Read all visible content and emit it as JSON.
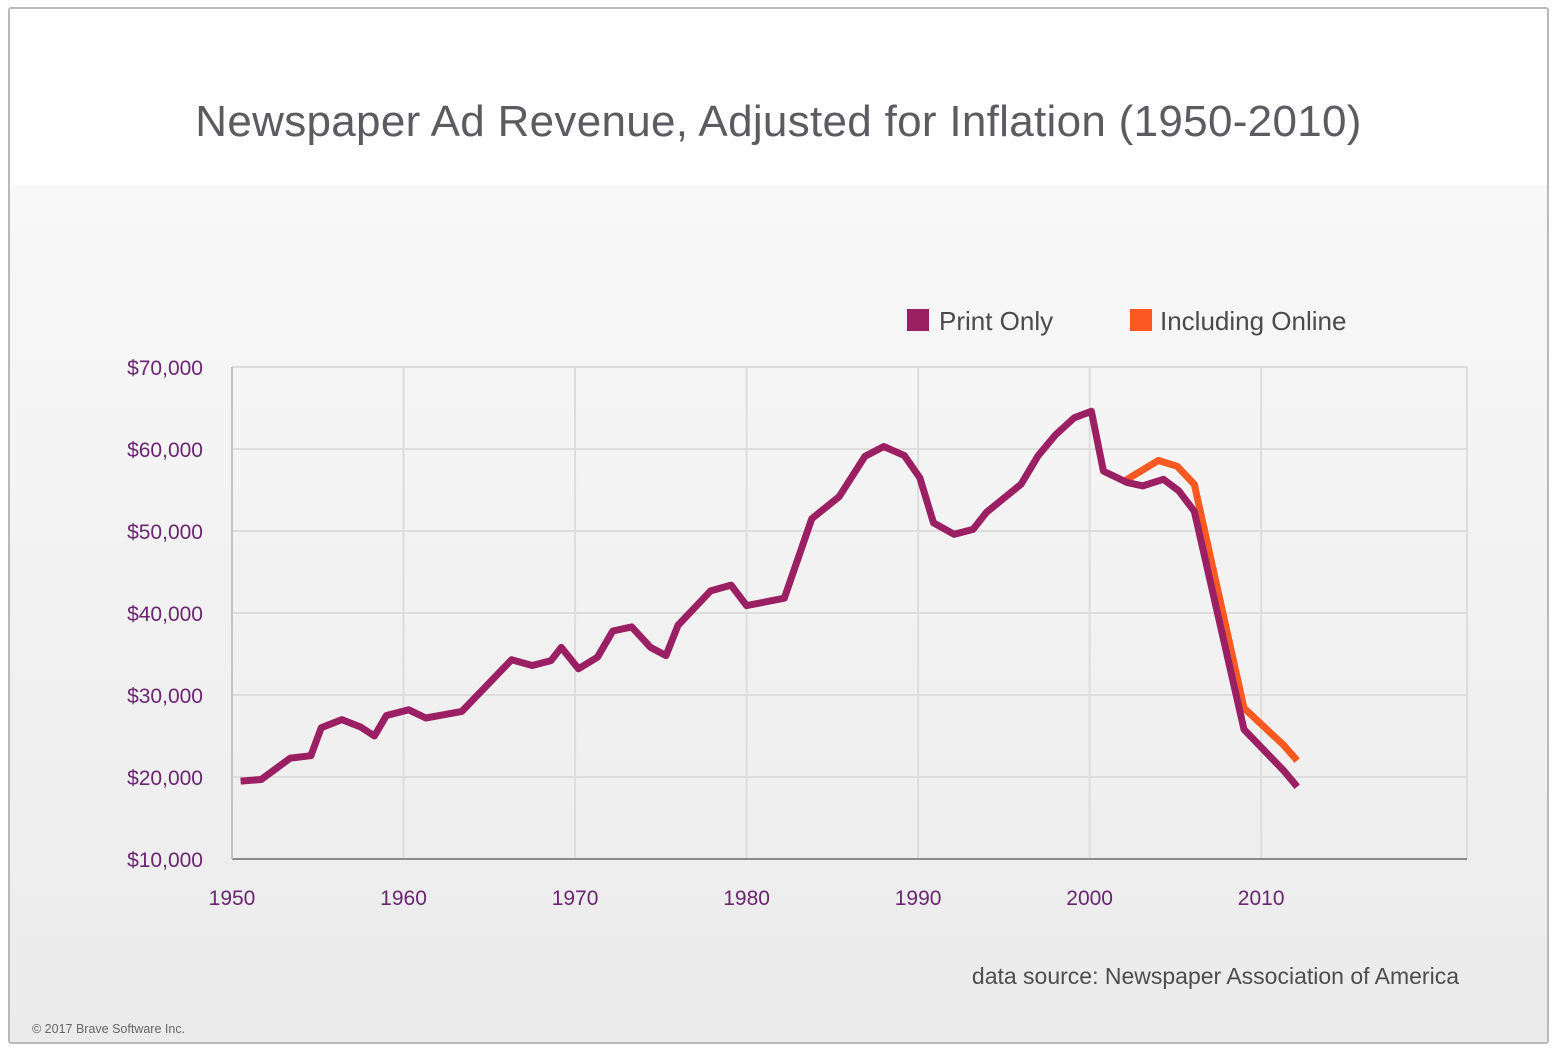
{
  "chart_data": {
    "type": "line",
    "title": "Newspaper Ad Revenue, Adjusted for Inflation (1950-2010)",
    "xlabel": "",
    "ylabel": "",
    "xlim": [
      1950,
      2022
    ],
    "ylim": [
      10000,
      70000
    ],
    "x_ticks": [
      1950,
      1960,
      1970,
      1980,
      1990,
      2000,
      2010
    ],
    "x_tick_labels": [
      "1950",
      "1960",
      "1970",
      "1980",
      "1990",
      "2000",
      "2010"
    ],
    "y_ticks": [
      10000,
      20000,
      30000,
      40000,
      50000,
      60000,
      70000
    ],
    "y_tick_labels": [
      "$10,000",
      "$20,000",
      "$30,000",
      "$40,000",
      "$50,000",
      "$60,000",
      "$70,000"
    ],
    "grid": true,
    "legend_position": "top-right",
    "series": [
      {
        "name": "Print Only",
        "color": "#9b1f63",
        "x": [
          1950.5,
          1951.7,
          1953.4,
          1954.6,
          1955.2,
          1956.4,
          1957.5,
          1958.3,
          1959.0,
          1960.3,
          1961.3,
          1963.4,
          1966.3,
          1967.5,
          1968.6,
          1969.2,
          1970.2,
          1971.3,
          1972.2,
          1973.3,
          1974.4,
          1975.3,
          1976.0,
          1977.9,
          1979.1,
          1980.0,
          1982.2,
          1983.8,
          1985.4,
          1986.9,
          1988.0,
          1989.2,
          1990.1,
          1990.9,
          1992.1,
          1993.2,
          1994.0,
          1996.0,
          1997.0,
          1998.0,
          1999.1,
          2000.1,
          2000.8,
          2002.2,
          2003.1,
          2004.3,
          2005.2,
          2006.1,
          2009.0,
          2011.3,
          2012.1
        ],
        "values": [
          19500,
          19700,
          22300,
          22600,
          26000,
          27000,
          26100,
          25000,
          27500,
          28200,
          27200,
          28000,
          34300,
          33600,
          34200,
          35800,
          33200,
          34600,
          37800,
          38300,
          35800,
          34800,
          38500,
          42700,
          43400,
          40900,
          41800,
          51500,
          54200,
          59100,
          60300,
          59200,
          56500,
          51000,
          49600,
          50200,
          52300,
          55700,
          59200,
          61700,
          63800,
          64600,
          57300,
          55900,
          55500,
          56300,
          54900,
          52400,
          25800,
          20800,
          18800
        ]
      },
      {
        "name": "Including Online",
        "color": "#fa5a22",
        "x": [
          2002.1,
          2004.0,
          2005.1,
          2006.1,
          2009.0,
          2011.3,
          2012.1
        ],
        "values": [
          56200,
          58600,
          57900,
          55700,
          28400,
          23900,
          22000
        ]
      }
    ],
    "annotations": [
      "data source: Newspaper Association of America"
    ]
  },
  "footer": {
    "source_note": "data source: Newspaper Association of America",
    "copyright": "© 2017 Brave Software Inc."
  }
}
